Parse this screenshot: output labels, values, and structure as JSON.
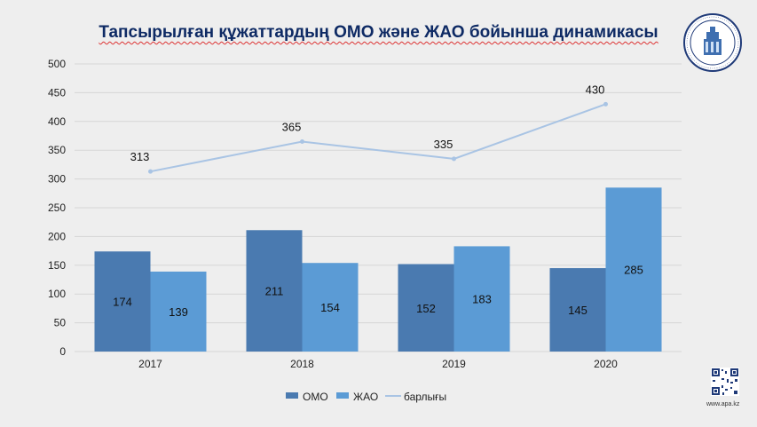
{
  "title": "Тапсырылған құжаттардың ОМО және ЖАО бойынша динамикасы",
  "website": "www.apa.kz",
  "logo": {
    "icon": "emblem-icon"
  },
  "qr": {
    "icon": "qr-code-icon"
  },
  "colors": {
    "omo": "#4a7ab0",
    "jao": "#5b9bd5",
    "total": "#a9c4e4",
    "grid": "#d5d5d5",
    "title": "#0e2a64"
  },
  "chart_data": {
    "type": "bar",
    "title": "Тапсырылған құжаттардың ОМО және ЖАО бойынша динамикасы",
    "categories": [
      "2017",
      "2018",
      "2019",
      "2020"
    ],
    "series": [
      {
        "name": "ОМО",
        "type": "bar",
        "values": [
          174,
          211,
          152,
          145
        ]
      },
      {
        "name": "ЖАО",
        "type": "bar",
        "values": [
          139,
          154,
          183,
          285
        ]
      },
      {
        "name": "барлығы",
        "type": "line",
        "values": [
          313,
          365,
          335,
          430
        ]
      }
    ],
    "ylim": [
      0,
      500
    ],
    "yticks": [
      0,
      50,
      100,
      150,
      200,
      250,
      300,
      350,
      400,
      450,
      500
    ],
    "grid": true,
    "legend": "bottom"
  }
}
